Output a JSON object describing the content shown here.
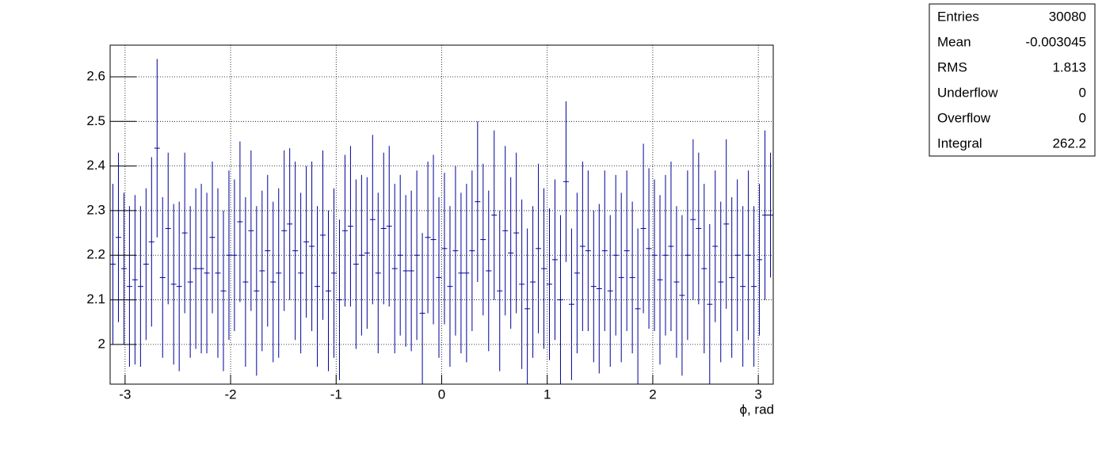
{
  "chart_data": {
    "type": "errorbar",
    "x_label": "ϕ, rad",
    "xlim": [
      -3.14159,
      3.14159
    ],
    "xticks": [
      -3,
      -2,
      -1,
      0,
      1,
      2,
      3
    ],
    "ylim": [
      1.911,
      2.671
    ],
    "yticks": [
      2,
      2.1,
      2.2,
      2.3,
      2.4,
      2.5,
      2.6
    ],
    "grid": true,
    "color": "#000099",
    "values": [
      2.18,
      2.24,
      2.17,
      2.13,
      2.145,
      2.13,
      2.18,
      2.23,
      2.44,
      2.15,
      2.26,
      2.135,
      2.13,
      2.25,
      2.14,
      2.17,
      2.17,
      2.16,
      2.24,
      2.16,
      2.12,
      2.2,
      2.2,
      2.275,
      2.14,
      2.255,
      2.12,
      2.165,
      2.21,
      2.14,
      2.16,
      2.255,
      2.27,
      2.21,
      2.16,
      2.23,
      2.22,
      2.13,
      2.245,
      2.12,
      2.16,
      2.1,
      2.255,
      2.265,
      2.18,
      2.2,
      2.205,
      2.28,
      2.16,
      2.26,
      2.265,
      2.17,
      2.2,
      2.165,
      2.165,
      2.2,
      2.07,
      2.24,
      2.235,
      2.15,
      2.215,
      2.13,
      2.21,
      2.16,
      2.16,
      2.21,
      2.32,
      2.235,
      2.165,
      2.29,
      2.12,
      2.255,
      2.205,
      2.25,
      2.135,
      2.08,
      2.14,
      2.215,
      2.17,
      2.135,
      2.19,
      2.1,
      2.365,
      2.09,
      2.16,
      2.22,
      2.21,
      2.13,
      2.125,
      2.21,
      2.12,
      2.2,
      2.15,
      2.21,
      2.15,
      2.08,
      2.26,
      2.215,
      2.2,
      2.145,
      2.2,
      2.22,
      2.14,
      2.11,
      2.2,
      2.28,
      2.26,
      2.17,
      2.09,
      2.22,
      2.14,
      2.27,
      2.15,
      2.2,
      2.13,
      2.2,
      2.13,
      2.19,
      2.29,
      2.29
    ],
    "errors": [
      0.18,
      0.19,
      0.17,
      0.18,
      0.19,
      0.18,
      0.17,
      0.19,
      0.2,
      0.18,
      0.17,
      0.18,
      0.19,
      0.18,
      0.17,
      0.18,
      0.19,
      0.18,
      0.17,
      0.19,
      0.18,
      0.19,
      0.17,
      0.18,
      0.19,
      0.18,
      0.19,
      0.18,
      0.17,
      0.18,
      0.19,
      0.18,
      0.17,
      0.2,
      0.18,
      0.17,
      0.19,
      0.18,
      0.19,
      0.18,
      0.19,
      0.18,
      0.17,
      0.18,
      0.19,
      0.18,
      0.17,
      0.19,
      0.18,
      0.17,
      0.18,
      0.19,
      0.18,
      0.17,
      0.18,
      0.19,
      0.18,
      0.17,
      0.19,
      0.18,
      0.17,
      0.18,
      0.19,
      0.18,
      0.2,
      0.18,
      0.18,
      0.17,
      0.18,
      0.19,
      0.18,
      0.19,
      0.17,
      0.18,
      0.19,
      0.18,
      0.17,
      0.19,
      0.18,
      0.17,
      0.18,
      0.19,
      0.18,
      0.17,
      0.18,
      0.19,
      0.18,
      0.17,
      0.19,
      0.18,
      0.17,
      0.18,
      0.19,
      0.18,
      0.17,
      0.18,
      0.19,
      0.18,
      0.17,
      0.19,
      0.18,
      0.19,
      0.17,
      0.18,
      0.19,
      0.18,
      0.17,
      0.19,
      0.18,
      0.17,
      0.18,
      0.19,
      0.18,
      0.17,
      0.18,
      0.19,
      0.18,
      0.17,
      0.19,
      0.14
    ]
  },
  "stats": [
    [
      "Entries",
      "30080"
    ],
    [
      "Mean",
      "-0.003045"
    ],
    [
      "RMS",
      "1.813"
    ],
    [
      "Underflow",
      "0"
    ],
    [
      "Overflow",
      "0"
    ],
    [
      "Integral",
      "262.2"
    ]
  ]
}
